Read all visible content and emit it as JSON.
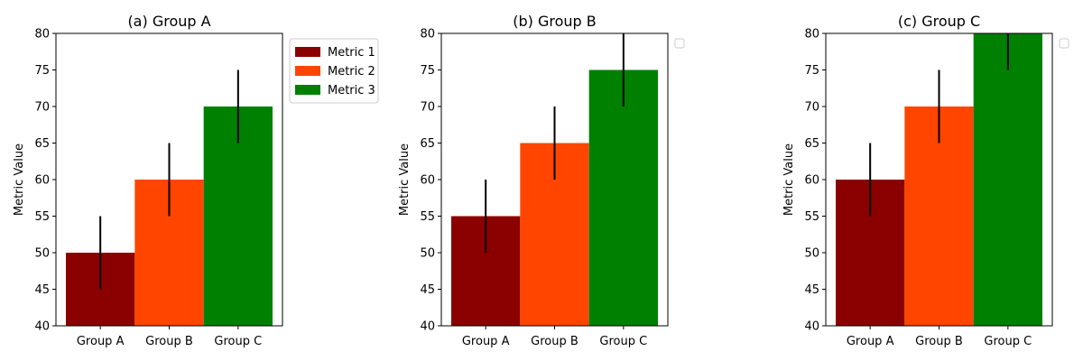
{
  "chart_data": [
    {
      "type": "bar",
      "title": "(a) Group A",
      "categories": [
        "Group A",
        "Group B",
        "Group C"
      ],
      "values": [
        50,
        60,
        70
      ],
      "errors": [
        5,
        5,
        5
      ],
      "colors": [
        "#8b0000",
        "#ff4500",
        "#008000"
      ],
      "xlabel": "",
      "ylabel": "Metric Value",
      "ylim": [
        40,
        80
      ],
      "yticks": [
        40,
        45,
        50,
        55,
        60,
        65,
        70,
        75,
        80
      ],
      "grid": false,
      "legend": {
        "placement": "outside-top-right",
        "entries": [
          {
            "label": "Metric 1",
            "color": "#8b0000"
          },
          {
            "label": "Metric 2",
            "color": "#ff4500"
          },
          {
            "label": "Metric 3",
            "color": "#008000"
          }
        ]
      }
    },
    {
      "type": "bar",
      "title": "(b) Group B",
      "categories": [
        "Group A",
        "Group B",
        "Group C"
      ],
      "values": [
        55,
        65,
        75
      ],
      "errors": [
        5,
        5,
        5
      ],
      "colors": [
        "#8b0000",
        "#ff4500",
        "#008000"
      ],
      "xlabel": "",
      "ylabel": "Metric Value",
      "ylim": [
        40,
        80
      ],
      "yticks": [
        40,
        45,
        50,
        55,
        60,
        65,
        70,
        75,
        80
      ],
      "grid": false,
      "legend": {
        "placement": "outside-top-right",
        "entries": []
      }
    },
    {
      "type": "bar",
      "title": "(c) Group C",
      "categories": [
        "Group A",
        "Group B",
        "Group C"
      ],
      "values": [
        60,
        70,
        80
      ],
      "errors": [
        5,
        5,
        5
      ],
      "colors": [
        "#8b0000",
        "#ff4500",
        "#008000"
      ],
      "xlabel": "",
      "ylabel": "Metric Value",
      "ylim": [
        40,
        80
      ],
      "yticks": [
        40,
        45,
        50,
        55,
        60,
        65,
        70,
        75,
        80
      ],
      "grid": false,
      "legend": {
        "placement": "outside-top-right",
        "entries": []
      }
    }
  ]
}
